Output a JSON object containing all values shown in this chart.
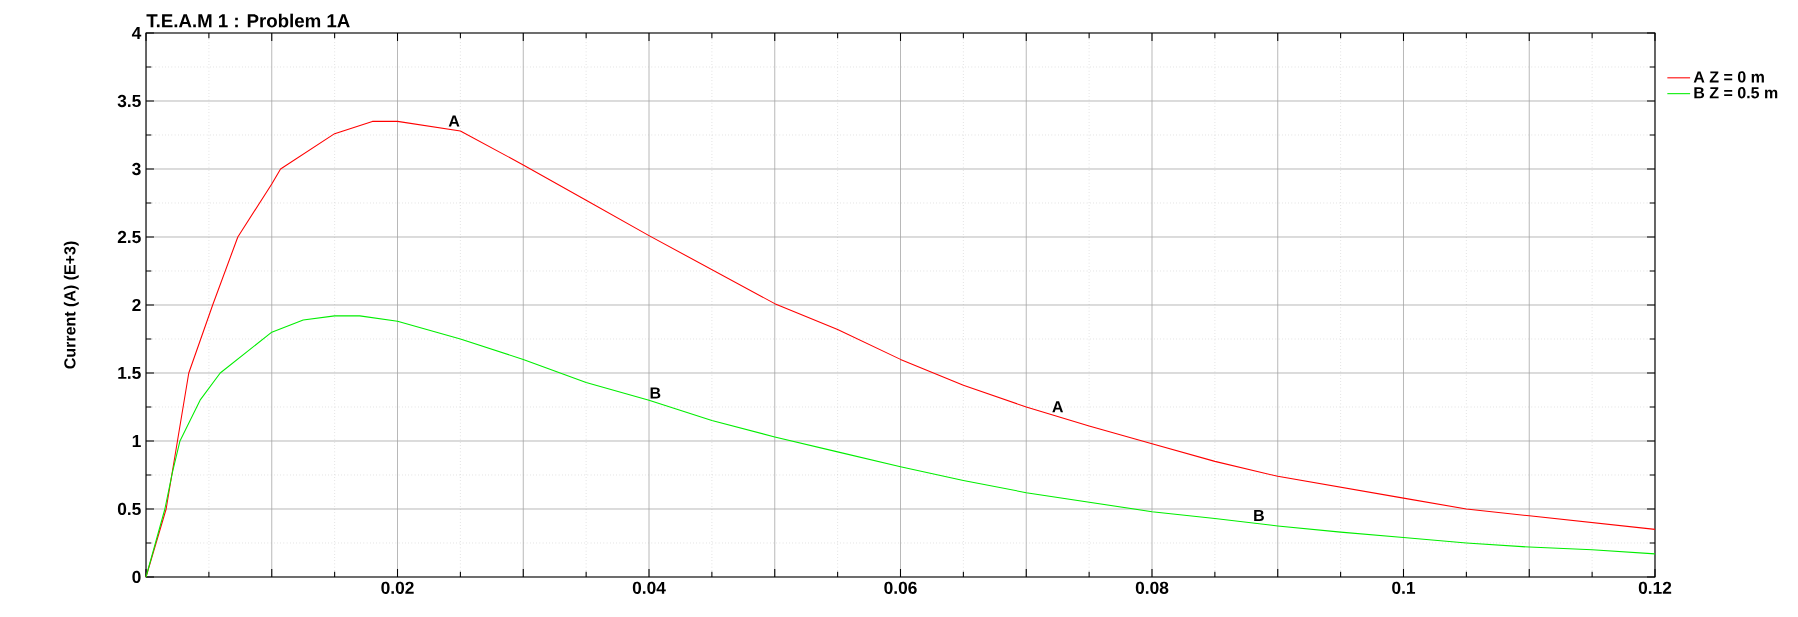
{
  "chart_data": {
    "type": "line",
    "title": "T.E.A.M 1 : Problem 1A",
    "ylabel": "Current (A) (E+3)",
    "xlim": [
      0,
      0.12
    ],
    "ylim": [
      0,
      4
    ],
    "xticks": [
      {
        "value": 0,
        "label": null
      },
      {
        "value": 0.01,
        "label": null
      },
      0.02,
      {
        "value": 0.03,
        "label": null
      },
      0.04,
      {
        "value": 0.05,
        "label": null
      },
      0.06,
      {
        "value": 0.07,
        "label": null
      },
      0.08,
      {
        "value": 0.09,
        "label": null
      },
      0.1,
      {
        "value": 0.11,
        "label": null
      },
      0.12
    ],
    "yticks": [
      0,
      0.5,
      1,
      1.5,
      2,
      2.5,
      3,
      3.5,
      4
    ],
    "grid": true,
    "legend": "top right",
    "marker": "none",
    "line_style": "solid",
    "series": [
      {
        "name": "A Z = 0 m",
        "color": "#ff0000",
        "x": [
          0,
          0.0016,
          0.0025,
          0.0034,
          0.0053,
          0.0073,
          0.01,
          0.0107,
          0.015,
          0.018,
          0.02,
          0.025,
          0.03,
          0.035,
          0.04,
          0.045,
          0.05,
          0.055,
          0.06,
          0.065,
          0.07,
          0.075,
          0.08,
          0.085,
          0.09,
          0.095,
          0.1,
          0.105,
          0.11,
          0.115,
          0.12
        ],
        "values": [
          0,
          0.5,
          1,
          1.5,
          2,
          2.5,
          2.89,
          3,
          3.26,
          3.35,
          3.35,
          3.28,
          3.03,
          2.77,
          2.51,
          2.26,
          2.01,
          1.82,
          1.6,
          1.41,
          1.25,
          1.11,
          0.98,
          0.85,
          0.74,
          0.66,
          0.58,
          0.5,
          0.45,
          0.4,
          0.35
        ]
      },
      {
        "name": "B Z = 0.5 m",
        "color": "#00ee00",
        "x": [
          0,
          0.0015,
          0.0021,
          0.0027,
          0.0043,
          0.0059,
          0.01,
          0.0125,
          0.015,
          0.017,
          0.02,
          0.025,
          0.03,
          0.035,
          0.04,
          0.045,
          0.05,
          0.055,
          0.06,
          0.065,
          0.07,
          0.075,
          0.08,
          0.085,
          0.09,
          0.095,
          0.1,
          0.105,
          0.11,
          0.115,
          0.12
        ],
        "values": [
          0,
          0.5,
          0.77,
          1,
          1.3,
          1.5,
          1.8,
          1.89,
          1.92,
          1.92,
          1.88,
          1.75,
          1.6,
          1.43,
          1.3,
          1.15,
          1.03,
          0.92,
          0.81,
          0.71,
          0.62,
          0.55,
          0.48,
          0.43,
          0.375,
          0.33,
          0.29,
          0.25,
          0.22,
          0.2,
          0.17
        ]
      }
    ],
    "annotations": [
      {
        "text": "A",
        "x": 0.0245,
        "y": 3.3
      },
      {
        "text": "B",
        "x": 0.0405,
        "y": 1.3
      },
      {
        "text": "A",
        "x": 0.0725,
        "y": 1.2
      },
      {
        "text": "B",
        "x": 0.0885,
        "y": 0.4
      }
    ]
  }
}
